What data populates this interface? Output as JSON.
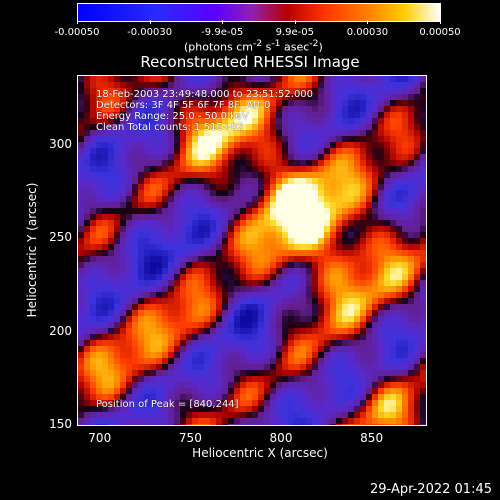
{
  "colorbar": {
    "ticks": [
      "-0.00050",
      "-0.00030",
      "-9.9e-05",
      "9.9e-05",
      "0.00030",
      "0.00050"
    ],
    "units_html": "(photons cm<sup>-2</sup> s<sup>-1</sup> asec<sup>-2</sup>)"
  },
  "header": {
    "title": "Reconstructed RHESSI Image"
  },
  "overlay": {
    "line1": "18-Feb-2003 23:49:48.000 to 23:51:52.000",
    "line2": "Detectors: 3F 4F 5F 6F 7F 8F, Att 0",
    "line3": "Energy Range: 25.0 - 50.0 keV",
    "line4": "Clean    Total counts: 1.51E+02",
    "peak": "Position of Peak = [840,244]"
  },
  "footer": {
    "timestamp": "29-Apr-2022 01:45"
  },
  "chart_data": {
    "type": "heatmap",
    "title": "Reconstructed RHESSI Image",
    "xlabel": "Heliocentric X (arcsec)",
    "ylabel": "Heliocentric Y (arcsec)",
    "xlim": [
      688,
      880
    ],
    "ylim": [
      150,
      337
    ],
    "xticks": [
      700,
      750,
      800,
      850
    ],
    "yticks": [
      150,
      200,
      250,
      300
    ],
    "clim": [
      -0.0005,
      0.0005
    ],
    "peak": {
      "x": 840,
      "y": 244
    }
  }
}
